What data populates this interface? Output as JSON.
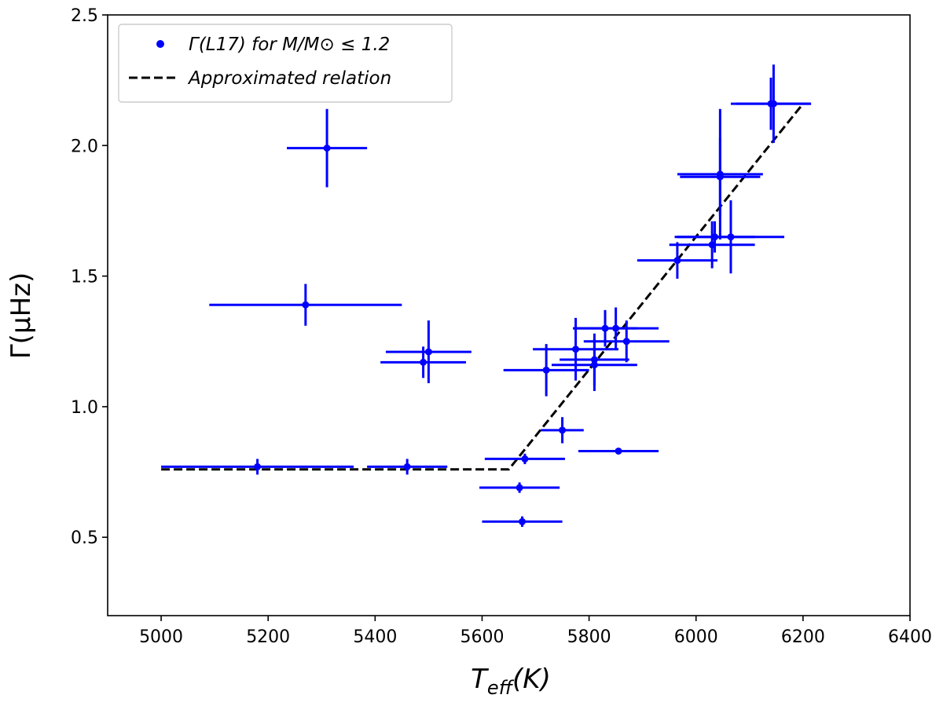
{
  "chart_data": {
    "type": "scatter",
    "xlabel_main": "T",
    "xlabel_sub": "eff",
    "xlabel_unit": "(K)",
    "ylabel": "Γ(μHz)",
    "xlim": [
      4900,
      6400
    ],
    "ylim": [
      0.2,
      2.5
    ],
    "x_ticks": [
      5000,
      5200,
      5400,
      5600,
      5800,
      6000,
      6200,
      6400
    ],
    "y_ticks": [
      0.5,
      1.0,
      1.5,
      2.0,
      2.5
    ],
    "grid": false,
    "legend_position": "top-left",
    "colors": {
      "points": "#0000ff",
      "line": "#000000"
    },
    "legend": {
      "points_label": "Γ(L17) for M/M⊙ ≤ 1.2",
      "line_label": "Approximated relation"
    },
    "series": [
      {
        "name": "Γ(L17) for M/M⊙ ≤ 1.2",
        "kind": "errorbar",
        "points": [
          {
            "x": 5310,
            "y": 1.99,
            "xerr": 75,
            "yerr": 0.15
          },
          {
            "x": 5270,
            "y": 1.39,
            "xerr": 180,
            "yerr": 0.08
          },
          {
            "x": 5500,
            "y": 1.21,
            "xerr": 80,
            "yerr": 0.12
          },
          {
            "x": 5490,
            "y": 1.17,
            "xerr": 80,
            "yerr": 0.06
          },
          {
            "x": 5180,
            "y": 0.77,
            "xerr": 180,
            "yerr": 0.03
          },
          {
            "x": 5460,
            "y": 0.77,
            "xerr": 75,
            "yerr": 0.03
          },
          {
            "x": 5720,
            "y": 1.14,
            "xerr": 80,
            "yerr": 0.1
          },
          {
            "x": 5750,
            "y": 0.91,
            "xerr": 40,
            "yerr": 0.05
          },
          {
            "x": 5680,
            "y": 0.8,
            "xerr": 75,
            "yerr": 0.02
          },
          {
            "x": 5670,
            "y": 0.69,
            "xerr": 75,
            "yerr": 0.02
          },
          {
            "x": 5675,
            "y": 0.56,
            "xerr": 75,
            "yerr": 0.02
          },
          {
            "x": 5775,
            "y": 1.22,
            "xerr": 80,
            "yerr": 0.12
          },
          {
            "x": 5810,
            "y": 1.16,
            "xerr": 80,
            "yerr": 0.1
          },
          {
            "x": 5810,
            "y": 1.18,
            "xerr": 65,
            "yerr": 0.1
          },
          {
            "x": 5830,
            "y": 1.3,
            "xerr": 60,
            "yerr": 0.07
          },
          {
            "x": 5850,
            "y": 1.3,
            "xerr": 80,
            "yerr": 0.08
          },
          {
            "x": 5870,
            "y": 1.25,
            "xerr": 80,
            "yerr": 0.08
          },
          {
            "x": 5855,
            "y": 0.83,
            "xerr": 75,
            "yerr": 0.01
          },
          {
            "x": 5965,
            "y": 1.56,
            "xerr": 75,
            "yerr": 0.07
          },
          {
            "x": 6030,
            "y": 1.62,
            "xerr": 80,
            "yerr": 0.09
          },
          {
            "x": 6035,
            "y": 1.65,
            "xerr": 75,
            "yerr": 0.06
          },
          {
            "x": 6065,
            "y": 1.65,
            "xerr": 100,
            "yerr": 0.14
          },
          {
            "x": 6045,
            "y": 1.88,
            "xerr": 75,
            "yerr": 0.15
          },
          {
            "x": 6045,
            "y": 1.89,
            "xerr": 80,
            "yerr": 0.25
          },
          {
            "x": 6140,
            "y": 2.16,
            "xerr": 75,
            "yerr": 0.1
          },
          {
            "x": 6145,
            "y": 2.16,
            "xerr": 70,
            "yerr": 0.15
          }
        ]
      },
      {
        "name": "Approximated relation",
        "kind": "dashed-line",
        "x": [
          5000,
          5650,
          6200
        ],
        "y": [
          0.76,
          0.76,
          2.16
        ]
      }
    ]
  }
}
